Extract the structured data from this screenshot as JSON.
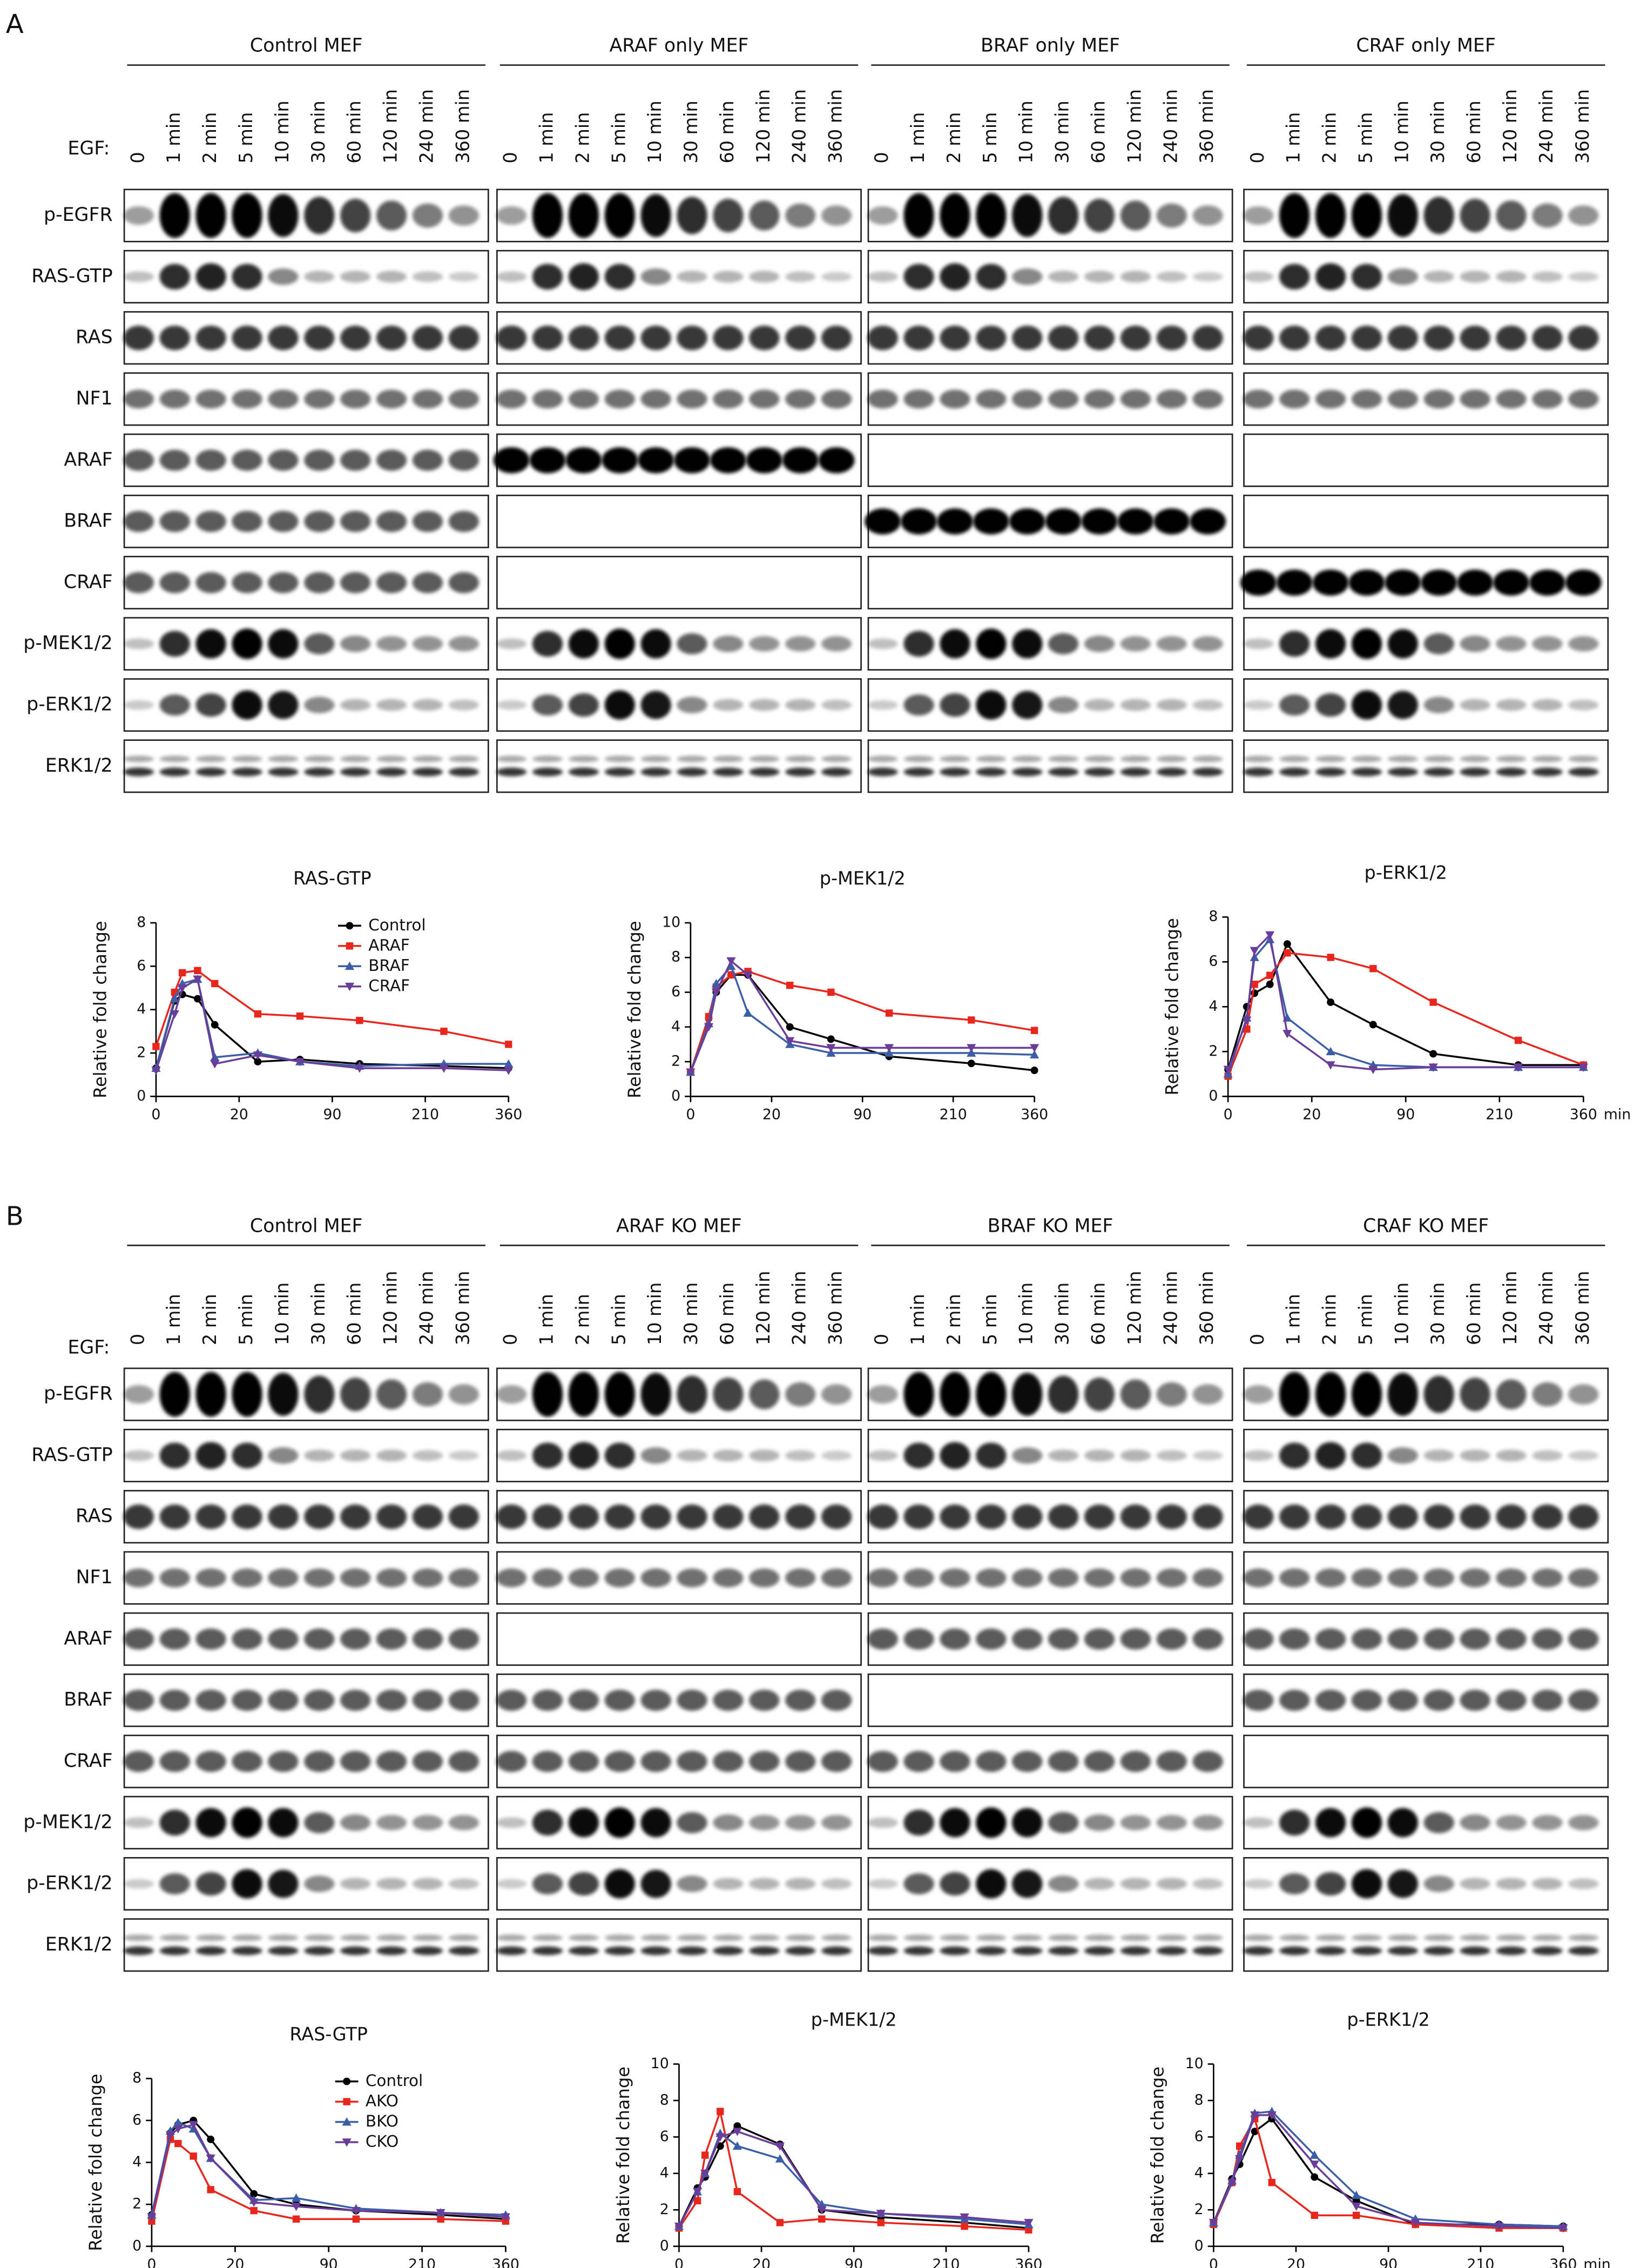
{
  "panels": [
    {
      "label": "A",
      "egf": "EGF:",
      "groups": [
        "Control MEF",
        "ARAF only MEF",
        "BRAF only MEF",
        "CRAF only MEF"
      ],
      "lanes": [
        "0",
        "1 min",
        "2 min",
        "5 min",
        "10 min",
        "30 min",
        "60 min",
        "120 min",
        "240 min",
        "360 min"
      ],
      "rows": [
        "p-EGFR",
        "RAS-GTP",
        "RAS",
        "NF1",
        "ARAF",
        "BRAF",
        "CRAF",
        "p-MEK1/2",
        "p-ERK1/2",
        "ERK1/2"
      ]
    },
    {
      "label": "B",
      "egf": "EGF:",
      "groups": [
        "Control MEF",
        "ARAF KO MEF",
        "BRAF KO MEF",
        "CRAF KO MEF"
      ],
      "lanes": [
        "0",
        "1 min",
        "2 min",
        "5 min",
        "10 min",
        "30 min",
        "60 min",
        "120 min",
        "240 min",
        "360 min"
      ],
      "rows": [
        "p-EGFR",
        "RAS-GTP",
        "RAS",
        "NF1",
        "ARAF",
        "BRAF",
        "CRAF",
        "p-MEK1/2",
        "p-ERK1/2",
        "ERK1/2"
      ]
    }
  ],
  "chart_data": [
    {
      "type": "line",
      "title": "RAS-GTP",
      "ylabel": "Relative fold change",
      "xscale": "sqrt",
      "x": [
        0,
        1,
        2,
        5,
        10,
        30,
        60,
        120,
        240,
        360
      ],
      "xlim": [
        0,
        360
      ],
      "xticks": [
        0,
        20,
        90,
        210,
        360
      ],
      "ylim": [
        0,
        8
      ],
      "yticks": [
        0,
        2,
        4,
        6,
        8
      ],
      "legend": "upper right",
      "series": [
        {
          "name": "Control",
          "color": "#000000",
          "values": [
            1.3,
            4.4,
            4.7,
            4.5,
            3.3,
            1.6,
            1.7,
            1.5,
            1.4,
            1.3
          ]
        },
        {
          "name": "ARAF",
          "color": "#e8261c",
          "values": [
            2.3,
            4.8,
            5.7,
            5.8,
            5.2,
            3.8,
            3.7,
            3.5,
            3.0,
            2.4
          ]
        },
        {
          "name": "BRAF",
          "color": "#3a5ea8",
          "values": [
            1.3,
            4.5,
            5.2,
            5.4,
            1.8,
            2.0,
            1.6,
            1.4,
            1.5,
            1.5
          ]
        },
        {
          "name": "CRAF",
          "color": "#6a3d9a",
          "values": [
            1.2,
            3.8,
            5.0,
            5.4,
            1.5,
            1.9,
            1.6,
            1.3,
            1.3,
            1.2
          ]
        }
      ]
    },
    {
      "type": "line",
      "title": "p-MEK1/2",
      "ylabel": "Relative fold change",
      "xscale": "sqrt",
      "x": [
        0,
        1,
        2,
        5,
        10,
        30,
        60,
        120,
        240,
        360
      ],
      "xlim": [
        0,
        360
      ],
      "xticks": [
        0,
        20,
        90,
        210,
        360
      ],
      "ylim": [
        0,
        10
      ],
      "yticks": [
        0,
        2,
        4,
        6,
        8,
        10
      ],
      "series": [
        {
          "name": "Control",
          "color": "#000000",
          "values": [
            1.4,
            4.5,
            6.0,
            7.0,
            7.0,
            4.0,
            3.3,
            2.3,
            1.9,
            1.5
          ]
        },
        {
          "name": "ARAF",
          "color": "#e8261c",
          "values": [
            1.4,
            4.6,
            6.3,
            7.0,
            7.2,
            6.4,
            6.0,
            4.8,
            4.4,
            3.8
          ]
        },
        {
          "name": "BRAF",
          "color": "#3a5ea8",
          "values": [
            1.4,
            4.2,
            6.5,
            7.5,
            4.8,
            3.0,
            2.5,
            2.5,
            2.5,
            2.4
          ]
        },
        {
          "name": "CRAF",
          "color": "#6a3d9a",
          "values": [
            1.4,
            4.0,
            6.0,
            7.8,
            7.0,
            3.2,
            2.8,
            2.8,
            2.8,
            2.8
          ]
        }
      ]
    },
    {
      "type": "line",
      "title": "p-ERK1/2",
      "ylabel": "Relative fold change",
      "xlabel": "min",
      "xscale": "sqrt",
      "x": [
        0,
        1,
        2,
        5,
        10,
        30,
        60,
        120,
        240,
        360
      ],
      "xlim": [
        0,
        360
      ],
      "xticks": [
        0,
        20,
        90,
        210,
        360
      ],
      "ylim": [
        0,
        8
      ],
      "yticks": [
        0,
        2,
        4,
        6,
        8
      ],
      "series": [
        {
          "name": "Control",
          "color": "#000000",
          "values": [
            1.2,
            4.0,
            4.6,
            5.0,
            6.8,
            4.2,
            3.2,
            1.9,
            1.4,
            1.4
          ]
        },
        {
          "name": "ARAF",
          "color": "#e8261c",
          "values": [
            0.9,
            3.0,
            5.0,
            5.4,
            6.4,
            6.2,
            5.7,
            4.2,
            2.5,
            1.4
          ]
        },
        {
          "name": "BRAF",
          "color": "#3a5ea8",
          "values": [
            1.0,
            3.5,
            6.2,
            7.0,
            3.5,
            2.0,
            1.4,
            1.3,
            1.3,
            1.3
          ]
        },
        {
          "name": "CRAF",
          "color": "#6a3d9a",
          "values": [
            1.2,
            3.4,
            6.5,
            7.2,
            2.8,
            1.4,
            1.2,
            1.3,
            1.3,
            1.3
          ]
        }
      ]
    },
    {
      "type": "line",
      "title": "RAS-GTP",
      "ylabel": "Relative fold change",
      "xscale": "sqrt",
      "x": [
        0,
        1,
        2,
        5,
        10,
        30,
        60,
        120,
        240,
        360
      ],
      "xlim": [
        0,
        360
      ],
      "xticks": [
        0,
        20,
        90,
        210,
        360
      ],
      "ylim": [
        0,
        8
      ],
      "yticks": [
        0,
        2,
        4,
        6,
        8
      ],
      "legend": "upper right",
      "series": [
        {
          "name": "Control",
          "color": "#000000",
          "values": [
            1.5,
            5.4,
            5.8,
            6.0,
            5.1,
            2.5,
            2.0,
            1.7,
            1.5,
            1.3
          ]
        },
        {
          "name": "AKO",
          "color": "#e8261c",
          "values": [
            1.2,
            5.1,
            4.9,
            4.3,
            2.7,
            1.7,
            1.3,
            1.3,
            1.3,
            1.2
          ]
        },
        {
          "name": "BKO",
          "color": "#3a5ea8",
          "values": [
            1.5,
            5.5,
            5.9,
            5.6,
            4.2,
            2.2,
            2.3,
            1.8,
            1.6,
            1.5
          ]
        },
        {
          "name": "CKO",
          "color": "#6a3d9a",
          "values": [
            1.4,
            5.3,
            5.6,
            5.8,
            4.2,
            2.1,
            1.9,
            1.7,
            1.6,
            1.4
          ]
        }
      ]
    },
    {
      "type": "line",
      "title": "p-MEK1/2",
      "ylabel": "Relative fold change",
      "xscale": "sqrt",
      "x": [
        0,
        1,
        2,
        5,
        10,
        30,
        60,
        120,
        240,
        360
      ],
      "xlim": [
        0,
        360
      ],
      "xticks": [
        0,
        20,
        90,
        210,
        360
      ],
      "ylim": [
        0,
        10
      ],
      "yticks": [
        0,
        2,
        4,
        6,
        8,
        10
      ],
      "series": [
        {
          "name": "Control",
          "color": "#000000",
          "values": [
            1.1,
            3.2,
            3.8,
            5.5,
            6.6,
            5.6,
            2.0,
            1.6,
            1.3,
            1.0
          ]
        },
        {
          "name": "AKO",
          "color": "#e8261c",
          "values": [
            1.0,
            2.5,
            5.0,
            7.4,
            3.0,
            1.3,
            1.5,
            1.3,
            1.1,
            0.9
          ]
        },
        {
          "name": "BKO",
          "color": "#3a5ea8",
          "values": [
            1.1,
            3.0,
            4.0,
            6.2,
            5.5,
            4.8,
            2.3,
            1.8,
            1.5,
            1.2
          ]
        },
        {
          "name": "CKO",
          "color": "#6a3d9a",
          "values": [
            1.1,
            3.0,
            4.0,
            6.0,
            6.3,
            5.5,
            2.0,
            1.8,
            1.6,
            1.3
          ]
        }
      ]
    },
    {
      "type": "line",
      "title": "p-ERK1/2",
      "ylabel": "Relative fold change",
      "xlabel": "min",
      "xscale": "sqrt",
      "x": [
        0,
        1,
        2,
        5,
        10,
        30,
        60,
        120,
        240,
        360
      ],
      "xlim": [
        0,
        360
      ],
      "xticks": [
        0,
        20,
        90,
        210,
        360
      ],
      "ylim": [
        0,
        10
      ],
      "yticks": [
        0,
        2,
        4,
        6,
        8,
        10
      ],
      "series": [
        {
          "name": "Control",
          "color": "#000000",
          "values": [
            1.3,
            3.7,
            4.5,
            6.3,
            7.0,
            3.8,
            2.5,
            1.2,
            1.2,
            1.1
          ]
        },
        {
          "name": "AKO",
          "color": "#e8261c",
          "values": [
            1.2,
            3.5,
            5.5,
            7.0,
            3.5,
            1.7,
            1.7,
            1.2,
            1.0,
            1.0
          ]
        },
        {
          "name": "BKO",
          "color": "#3a5ea8",
          "values": [
            1.3,
            3.6,
            5.0,
            7.3,
            7.4,
            5.0,
            2.8,
            1.5,
            1.2,
            1.1
          ]
        },
        {
          "name": "CKO",
          "color": "#6a3d9a",
          "values": [
            1.3,
            3.5,
            4.8,
            7.2,
            7.2,
            4.5,
            2.2,
            1.3,
            1.1,
            1.0
          ]
        }
      ]
    }
  ]
}
